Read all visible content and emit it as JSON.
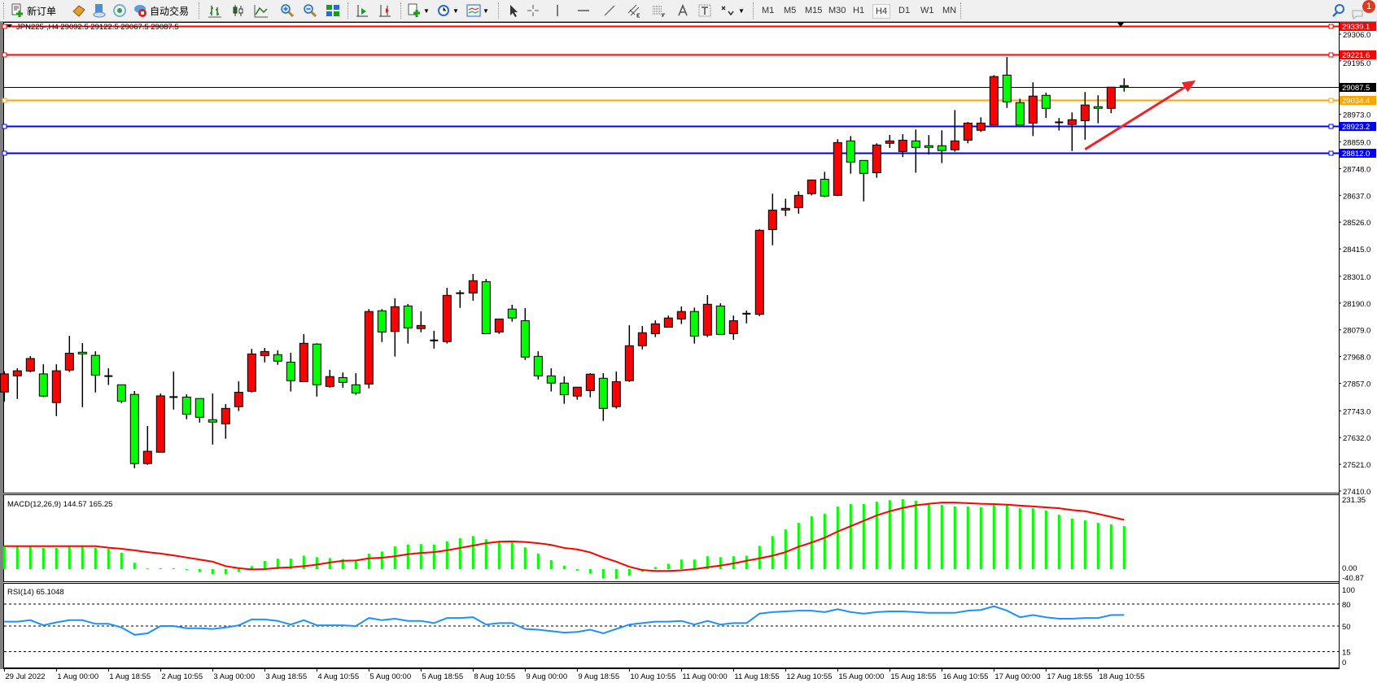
{
  "toolbar": {
    "new_order_label": "新订单",
    "auto_trade_label": "自动交易",
    "timeframes": [
      "M1",
      "M5",
      "M15",
      "M30",
      "H1",
      "H4",
      "D1",
      "W1",
      "MN"
    ],
    "active_timeframe": "H4",
    "notification_count": "1",
    "icons": [
      "new-order-icon",
      "market-watch-icon",
      "navigator-icon",
      "signals-icon",
      "auto-trading-icon",
      "bar-chart-icon",
      "candlestick-icon",
      "line-chart-icon",
      "zoom-in-icon",
      "zoom-out-icon",
      "tile-windows-icon",
      "chart-shift-icon",
      "auto-scroll-icon",
      "new-chart-icon",
      "periods-clock-icon",
      "indicators-icon",
      "cursor-icon",
      "crosshair-icon",
      "vertical-line-icon",
      "horizontal-line-icon",
      "trendline-icon",
      "equidistant-channel-icon",
      "fibonacci-icon",
      "text-icon",
      "text-label-icon",
      "arrows-icon",
      "search-icon",
      "notifications-icon"
    ]
  },
  "chart": {
    "header": "JPN225-,H4  29092.5 29122.5 29067.5 29087.5",
    "colors": {
      "bull": "#ff0000",
      "bear": "#00ff00",
      "resistance": "#ff0000",
      "bid": "#000000",
      "orange_level": "#ffa500",
      "support": "#0000ff",
      "rsi": "#1e90ff",
      "signal": "#ff0000",
      "arrow": "#e8262b"
    }
  },
  "chart_data": [
    {
      "type": "candlestick",
      "symbol": "JPN225-",
      "timeframe": "H4",
      "ylim": [
        27410.0,
        29339.1
      ],
      "y_ticks": [
        "29306.0",
        "29195.0",
        "28973.0",
        "28859.0",
        "28748.0",
        "28637.0",
        "28526.0",
        "28415.0",
        "28301.0",
        "28190.0",
        "28079.0",
        "27968.0",
        "27857.0",
        "27743.0",
        "27632.0",
        "27521.0",
        "27410.0"
      ],
      "x_tick_labels": [
        "29 Jul 2022",
        "1 Aug 00:00",
        "1 Aug 18:55",
        "2 Aug 10:55",
        "3 Aug 00:00",
        "3 Aug 18:55",
        "4 Aug 10:55",
        "5 Aug 00:00",
        "5 Aug 18:55",
        "8 Aug 10:55",
        "9 Aug 00:00",
        "9 Aug 18:55",
        "10 Aug 10:55",
        "11 Aug 00:00",
        "11 Aug 18:55",
        "12 Aug 10:55",
        "15 Aug 00:00",
        "15 Aug 18:55",
        "16 Aug 10:55",
        "17 Aug 00:00",
        "17 Aug 18:55",
        "18 Aug 10:55"
      ],
      "ohlc": [
        [
          27821,
          27907,
          27781,
          27896
        ],
        [
          27888,
          27920,
          27792,
          27909
        ],
        [
          27908,
          27970,
          27902,
          27960
        ],
        [
          27896,
          27936,
          27800,
          27804
        ],
        [
          27777,
          27936,
          27721,
          27909
        ],
        [
          27912,
          28054,
          27904,
          27982
        ],
        [
          27986,
          28024,
          27758,
          27979
        ],
        [
          27973,
          27990,
          27819,
          27891
        ],
        [
          27887,
          27919,
          27850,
          27887
        ],
        [
          27851,
          27851,
          27775,
          27783
        ],
        [
          27811,
          27825,
          27505,
          27524
        ],
        [
          27524,
          27680,
          27519,
          27575
        ],
        [
          27571,
          27815,
          27571,
          27805
        ],
        [
          27800,
          27906,
          27748,
          27800
        ],
        [
          27800,
          27811,
          27708,
          27729
        ],
        [
          27794,
          27794,
          27694,
          27716
        ],
        [
          27706,
          27815,
          27603,
          27696
        ],
        [
          27689,
          27771,
          27627,
          27753
        ],
        [
          27760,
          27865,
          27742,
          27820
        ],
        [
          27824,
          28000,
          27819,
          27979
        ],
        [
          27972,
          28004,
          27944,
          27989
        ],
        [
          27976,
          27994,
          27934,
          27949
        ],
        [
          27945,
          27984,
          27823,
          27868
        ],
        [
          27864,
          28061,
          27864,
          28023
        ],
        [
          28020,
          28023,
          27802,
          27851
        ],
        [
          27844,
          27913,
          27839,
          27885
        ],
        [
          27881,
          27902,
          27839,
          27861
        ],
        [
          27851,
          27899,
          27809,
          27817
        ],
        [
          27854,
          28165,
          27836,
          28155
        ],
        [
          28158,
          28165,
          28028,
          28070
        ],
        [
          28072,
          28210,
          27968,
          28175
        ],
        [
          28178,
          28186,
          28022,
          28087
        ],
        [
          28084,
          28156,
          28069,
          28097
        ],
        [
          28035,
          28075,
          28001,
          28035
        ],
        [
          28030,
          28253,
          28022,
          28222
        ],
        [
          28231,
          28243,
          28170,
          28231
        ],
        [
          28232,
          28311,
          28200,
          28283
        ],
        [
          28279,
          28290,
          28063,
          28063
        ],
        [
          28070,
          28124,
          28062,
          28124
        ],
        [
          28165,
          28183,
          28113,
          28128
        ],
        [
          28117,
          28169,
          27954,
          27966
        ],
        [
          27969,
          27990,
          27873,
          27888
        ],
        [
          27888,
          27919,
          27823,
          27858
        ],
        [
          27858,
          27886,
          27772,
          27810
        ],
        [
          27804,
          27841,
          27789,
          27841
        ],
        [
          27827,
          27899,
          27799,
          27895
        ],
        [
          27878,
          27899,
          27701,
          27753
        ],
        [
          27760,
          27906,
          27752,
          27864
        ],
        [
          27868,
          28098,
          27863,
          28013
        ],
        [
          28013,
          28095,
          27998,
          28067
        ],
        [
          28063,
          28118,
          28049,
          28104
        ],
        [
          28090,
          28138,
          28090,
          28128
        ],
        [
          28124,
          28176,
          28103,
          28155
        ],
        [
          28155,
          28171,
          28022,
          28053
        ],
        [
          28057,
          28223,
          28049,
          28185
        ],
        [
          28178,
          28189,
          28060,
          28060
        ],
        [
          28063,
          28138,
          28038,
          28117
        ],
        [
          28146,
          28159,
          28106,
          28146
        ],
        [
          28143,
          28497,
          28136,
          28492
        ],
        [
          28495,
          28644,
          28430,
          28576
        ],
        [
          28576,
          28623,
          28551,
          28583
        ],
        [
          28586,
          28654,
          28561,
          28637
        ],
        [
          28644,
          28701,
          28637,
          28701
        ],
        [
          28704,
          28735,
          28630,
          28634
        ],
        [
          28637,
          28870,
          28634,
          28856
        ],
        [
          28863,
          28883,
          28727,
          28775
        ],
        [
          28782,
          28782,
          28612,
          28728
        ],
        [
          28731,
          28853,
          28710,
          28846
        ],
        [
          28853,
          28888,
          28834,
          28863
        ],
        [
          28819,
          28891,
          28796,
          28866
        ],
        [
          28863,
          28910,
          28731,
          28836
        ],
        [
          28843,
          28887,
          28806,
          28836
        ],
        [
          28843,
          28907,
          28771,
          28823
        ],
        [
          28826,
          28991,
          28818,
          28863
        ],
        [
          28866,
          28941,
          28853,
          28937
        ],
        [
          28907,
          28961,
          28900,
          28937
        ],
        [
          28929,
          29136,
          28929,
          29130
        ],
        [
          29136,
          29211,
          29000,
          29025
        ],
        [
          29022,
          29038,
          28929,
          28929
        ],
        [
          28937,
          29106,
          28883,
          29049
        ],
        [
          29052,
          29063,
          28958,
          28998
        ],
        [
          28940,
          28958,
          28906,
          28940
        ],
        [
          28931,
          28981,
          28821,
          28951
        ],
        [
          28947,
          29066,
          28868,
          29012
        ],
        [
          29005,
          29052,
          28936,
          28998
        ],
        [
          28998,
          29086,
          28978,
          29086
        ],
        [
          29092.5,
          29122.5,
          29067.5,
          29087.5
        ]
      ],
      "horizontal_lines": [
        {
          "price": "29339.1",
          "color": "#ff0000"
        },
        {
          "price": "29221.6",
          "color": "#ff0000"
        },
        {
          "price": "29087.5",
          "color": "#000000"
        },
        {
          "price": "29034.4",
          "color": "#ffa500"
        },
        {
          "price": "28923.2",
          "color": "#0000ff"
        },
        {
          "price": "28812.0",
          "color": "#0000ff"
        }
      ],
      "annotation": {
        "type": "arrow",
        "color": "#e8262b",
        "from": {
          "bar": 83,
          "price": 28828
        },
        "to": {
          "bar": 91.5,
          "price": 29114
        }
      }
    },
    {
      "type": "bar+line",
      "label": "MACD(12,26,9) 144.57 165.25",
      "ylim": [
        -40.87,
        231.35
      ],
      "y_ticks": [
        "231.35",
        "0.00",
        "-40.87"
      ],
      "histogram": [
        77,
        75,
        75,
        71,
        71,
        75,
        79,
        71,
        68,
        55,
        21,
        2,
        3,
        3,
        -1,
        -10,
        -17,
        -17,
        -9,
        10,
        27,
        35,
        35,
        45,
        40,
        37,
        34,
        27,
        52,
        59,
        76,
        82,
        84,
        82,
        93,
        103,
        111,
        100,
        90,
        90,
        73,
        52,
        30,
        11,
        -5,
        -15,
        -31,
        -33,
        -22,
        -9,
        7,
        18,
        32,
        32,
        43,
        40,
        43,
        45,
        78,
        111,
        133,
        155,
        177,
        185,
        210,
        218,
        218,
        226,
        231,
        234,
        229,
        218,
        215,
        210,
        210,
        207,
        218,
        215,
        204,
        204,
        196,
        182,
        169,
        163,
        155,
        150,
        144.57
      ],
      "signal": [
        77,
        77,
        77,
        77,
        77,
        77,
        77,
        77,
        72,
        68,
        63,
        57,
        52,
        46,
        39,
        32,
        25,
        10,
        3,
        -1,
        0,
        4,
        6,
        10,
        15,
        22,
        28,
        29,
        36,
        38,
        43,
        50,
        54,
        57,
        63,
        71,
        79,
        87,
        92,
        93,
        91,
        87,
        81,
        71,
        66,
        56,
        39,
        25,
        8,
        -3,
        -6,
        -6,
        -4,
        0,
        6,
        12,
        19,
        28,
        36,
        45,
        57,
        75,
        89,
        105,
        126,
        144,
        162,
        180,
        194,
        205,
        214,
        219,
        223,
        223,
        221,
        219,
        218,
        216,
        213,
        210,
        207,
        204,
        198,
        194,
        185,
        175,
        165.25
      ]
    },
    {
      "type": "line",
      "label": "RSI(14) 65.1048",
      "ylim": [
        0,
        100
      ],
      "y_ticks": [
        "100",
        "80",
        "50",
        "15",
        "0"
      ],
      "levels": [
        80,
        50,
        15
      ],
      "values": [
        56,
        56,
        58,
        51,
        55,
        58,
        58,
        53,
        53,
        48,
        38,
        40,
        50,
        50,
        47,
        47,
        46,
        48,
        51,
        59,
        59,
        57,
        52,
        58,
        51,
        51,
        51,
        50,
        61,
        58,
        60,
        57,
        57,
        54,
        61,
        61,
        62,
        52,
        54,
        54,
        46,
        45,
        43,
        41,
        42,
        45,
        40,
        46,
        52,
        54,
        56,
        56,
        57,
        52,
        57,
        52,
        54,
        54,
        67,
        69,
        70,
        71,
        71,
        69,
        73,
        69,
        67,
        69,
        70,
        70,
        69,
        68,
        68,
        68,
        71,
        72,
        77,
        71,
        62,
        65,
        62,
        60,
        60,
        61,
        61,
        65,
        65.1048
      ]
    }
  ]
}
